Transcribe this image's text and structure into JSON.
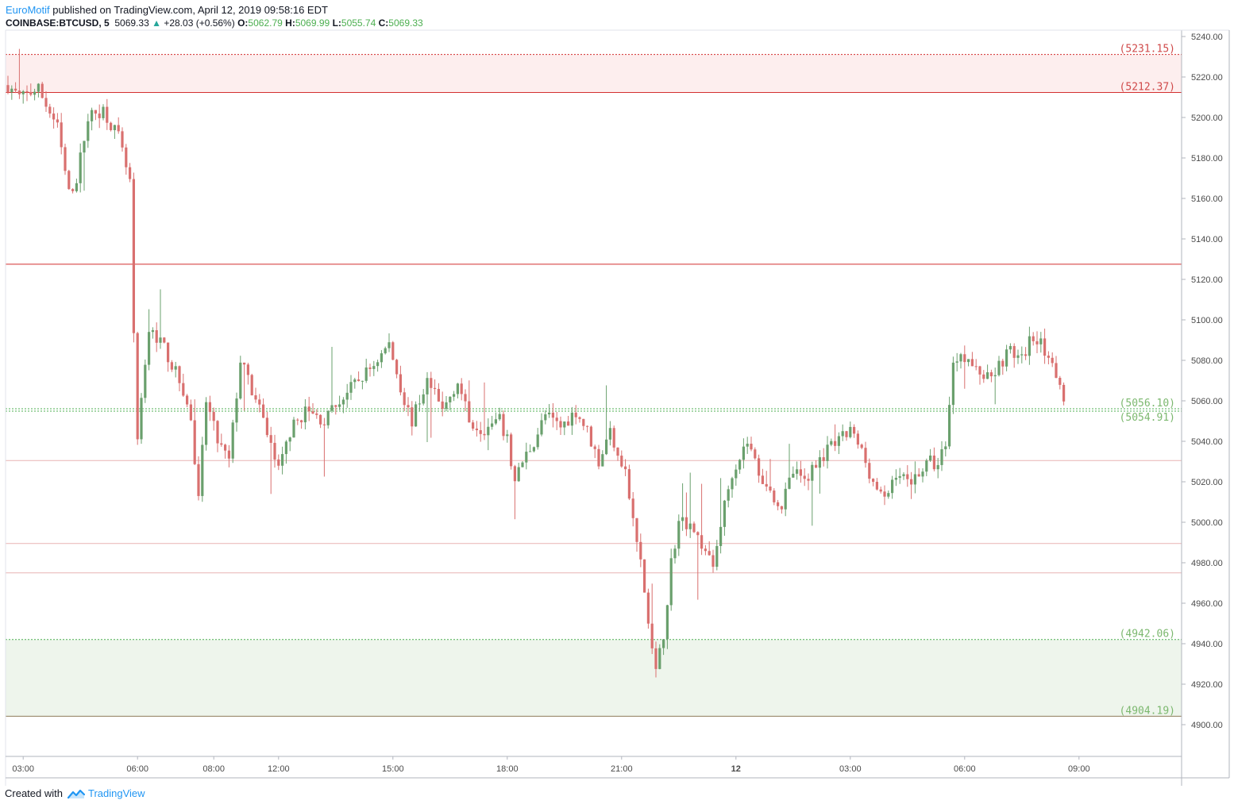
{
  "header": {
    "author": "EuroMotif",
    "published_text": "published on TradingView.com, April 12, 2019 09:58:16 EDT",
    "symbol": "COINBASE:BTCUSD, 5",
    "last": "5069.33",
    "change_arrow": "▲",
    "change": "+28.03 (+0.56%)",
    "o_label": "O:",
    "o_value": "5062.79",
    "h_label": "H:",
    "h_value": "5069.99",
    "l_label": "L:",
    "l_value": "5055.74",
    "c_label": "C:",
    "c_value": "5069.33"
  },
  "footer": {
    "created_with": "Created with",
    "brand": "TradingView",
    "logo_icon": "tradingview-logo-icon"
  },
  "colors": {
    "up": "#6aa06d",
    "down": "#d9706f",
    "resistance": "#d32f2f",
    "support": "#4caf50",
    "green_label": "#7cb86f",
    "red_label": "#d04a4a"
  },
  "chart_data": {
    "type": "candlestick",
    "ylim": [
      4890,
      5244
    ],
    "y_ticks": [
      "5240.00",
      "5220.00",
      "5200.00",
      "5180.00",
      "5160.00",
      "5140.00",
      "5120.00",
      "5100.00",
      "5080.00",
      "5060.00",
      "5040.00",
      "5020.00",
      "5000.00",
      "4980.00",
      "4960.00",
      "4940.00",
      "4920.00",
      "4900.00"
    ],
    "x_ticks": [
      {
        "label": "03:00",
        "bar": 4,
        "bold": false
      },
      {
        "label": "06:00",
        "bar": 34,
        "bold": false
      },
      {
        "label": "08:00",
        "bar": 54,
        "bold": false
      },
      {
        "label": "12:00",
        "bar": 71,
        "bold": false
      },
      {
        "label": "15:00",
        "bar": 101,
        "bold": false
      },
      {
        "label": "18:00",
        "bar": 131,
        "bold": false
      },
      {
        "label": "21:00",
        "bar": 161,
        "bold": false
      },
      {
        "label": "12",
        "bar": 191,
        "bold": true
      },
      {
        "label": "03:00",
        "bar": 221,
        "bold": false
      },
      {
        "label": "06:00",
        "bar": 251,
        "bold": false
      },
      {
        "label": "09:00",
        "bar": 281,
        "bold": false
      }
    ],
    "zones": [
      {
        "from": 5212.37,
        "to": 5231.15,
        "kind": "resistance"
      },
      {
        "from": 4904.19,
        "to": 4942.06,
        "kind": "support"
      }
    ],
    "levels": [
      {
        "value": 5231.15,
        "label": "(5231.15)",
        "style": "dotted",
        "kind": "resistance"
      },
      {
        "value": 5212.37,
        "label": "(5212.37)",
        "style": "solid",
        "kind": "resistance"
      },
      {
        "value": 5127.5,
        "label": "",
        "style": "solid",
        "kind": "resistance"
      },
      {
        "value": 5056.1,
        "label": "(5056.10)",
        "style": "dotted",
        "kind": "support"
      },
      {
        "value": 5054.91,
        "label": "(5054.91)",
        "style": "dotted",
        "kind": "support"
      },
      {
        "value": 5030.5,
        "label": "",
        "style": "solid",
        "kind": "neutral"
      },
      {
        "value": 4989.5,
        "label": "",
        "style": "solid",
        "kind": "neutral"
      },
      {
        "value": 4975.0,
        "label": "",
        "style": "solid",
        "kind": "neutral"
      },
      {
        "value": 4942.06,
        "label": "(4942.06)",
        "style": "dotted",
        "kind": "support"
      },
      {
        "value": 4904.19,
        "label": "(4904.19)",
        "style": "solid",
        "kind": "support"
      }
    ],
    "anchors": [
      [
        0,
        5216
      ],
      [
        3,
        5210
      ],
      [
        8,
        5214
      ],
      [
        13,
        5195
      ],
      [
        16,
        5162
      ],
      [
        18,
        5170
      ],
      [
        21,
        5200
      ],
      [
        25,
        5204
      ],
      [
        29,
        5190
      ],
      [
        31,
        5175
      ],
      [
        32,
        5168
      ],
      [
        33,
        5090
      ],
      [
        34,
        5040
      ],
      [
        37,
        5095
      ],
      [
        40,
        5090
      ],
      [
        43,
        5078
      ],
      [
        46,
        5065
      ],
      [
        48,
        5050
      ],
      [
        50,
        5010
      ],
      [
        52,
        5060
      ],
      [
        55,
        5040
      ],
      [
        58,
        5030
      ],
      [
        61,
        5080
      ],
      [
        64,
        5065
      ],
      [
        68,
        5045
      ],
      [
        71,
        5025
      ],
      [
        74,
        5045
      ],
      [
        78,
        5055
      ],
      [
        83,
        5050
      ],
      [
        87,
        5060
      ],
      [
        91,
        5068
      ],
      [
        96,
        5078
      ],
      [
        100,
        5088
      ],
      [
        104,
        5060
      ],
      [
        106,
        5050
      ],
      [
        110,
        5070
      ],
      [
        114,
        5055
      ],
      [
        118,
        5070
      ],
      [
        121,
        5050
      ],
      [
        125,
        5046
      ],
      [
        129,
        5050
      ],
      [
        131,
        5040
      ],
      [
        133,
        5020
      ],
      [
        135,
        5030
      ],
      [
        138,
        5040
      ],
      [
        141,
        5053
      ],
      [
        145,
        5047
      ],
      [
        149,
        5055
      ],
      [
        152,
        5045
      ],
      [
        155,
        5030
      ],
      [
        158,
        5045
      ],
      [
        162,
        5025
      ],
      [
        164,
        5000
      ],
      [
        166,
        4980
      ],
      [
        168,
        4950
      ],
      [
        170,
        4925
      ],
      [
        172,
        4945
      ],
      [
        174,
        4980
      ],
      [
        176,
        5000
      ],
      [
        179,
        5000
      ],
      [
        183,
        4985
      ],
      [
        185,
        4978
      ],
      [
        187,
        5000
      ],
      [
        190,
        5025
      ],
      [
        194,
        5040
      ],
      [
        197,
        5025
      ],
      [
        200,
        5015
      ],
      [
        203,
        5008
      ],
      [
        206,
        5025
      ],
      [
        209,
        5020
      ],
      [
        212,
        5030
      ],
      [
        215,
        5035
      ],
      [
        218,
        5040
      ],
      [
        221,
        5045
      ],
      [
        224,
        5035
      ],
      [
        227,
        5020
      ],
      [
        230,
        5010
      ],
      [
        233,
        5025
      ],
      [
        236,
        5020
      ],
      [
        239,
        5025
      ],
      [
        242,
        5030
      ],
      [
        244,
        5028
      ],
      [
        246,
        5040
      ],
      [
        248,
        5078
      ],
      [
        250,
        5085
      ],
      [
        254,
        5075
      ],
      [
        257,
        5072
      ],
      [
        260,
        5078
      ],
      [
        263,
        5085
      ],
      [
        266,
        5080
      ],
      [
        268,
        5090
      ],
      [
        271,
        5092
      ],
      [
        273,
        5078
      ],
      [
        276,
        5070
      ],
      [
        277,
        5063
      ]
    ]
  }
}
